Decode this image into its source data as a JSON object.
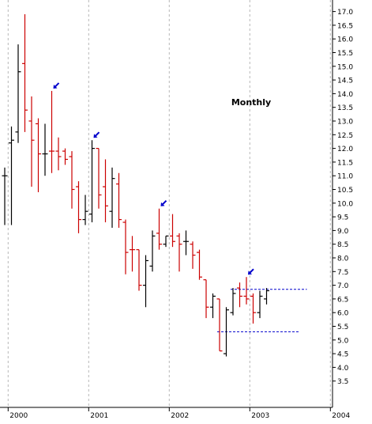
{
  "chart_data": {
    "type": "ohlc",
    "title": "Monthly",
    "ylim": [
      3.0,
      17.5
    ],
    "y_ticks": [
      3.5,
      4.0,
      4.5,
      5.0,
      5.5,
      6.0,
      6.5,
      7.0,
      7.5,
      8.0,
      8.5,
      9.0,
      9.5,
      10.0,
      10.5,
      11.0,
      11.5,
      12.0,
      12.5,
      13.0,
      13.5,
      14.0,
      14.5,
      15.0,
      15.5,
      16.0,
      16.5,
      17.0
    ],
    "y_tick_labels": [
      "3.5",
      "4.0",
      "4.5",
      "5.0",
      "5.5",
      "6.0",
      "6.5",
      "7.0",
      "7.5",
      "8.0",
      "8.5",
      "9.0",
      "9.5",
      "10.0",
      "10.5",
      "11.0",
      "11.5",
      "12.0",
      "12.5",
      "13.0",
      "13.5",
      "14.0",
      "14.5",
      "15.0",
      "15.5",
      "16.0",
      "16.5",
      "17.0"
    ],
    "year_markers": [
      {
        "label": "2000",
        "month_index": 1
      },
      {
        "label": "2001",
        "month_index": 13
      },
      {
        "label": "2002",
        "month_index": 25
      },
      {
        "label": "2003",
        "month_index": 37
      },
      {
        "label": "2004",
        "month_index": 49
      }
    ],
    "bars": [
      {
        "m": 0,
        "open": 11.0,
        "high": 11.3,
        "low": 9.2,
        "close": 11.0,
        "color": "black"
      },
      {
        "m": 1,
        "open": 12.2,
        "high": 12.8,
        "low": 9.2,
        "close": 12.3,
        "color": "black"
      },
      {
        "m": 2,
        "open": 12.6,
        "high": 15.8,
        "low": 12.2,
        "close": 14.8,
        "color": "black"
      },
      {
        "m": 3,
        "open": 15.1,
        "high": 16.9,
        "low": 12.6,
        "close": 13.4,
        "color": "red"
      },
      {
        "m": 4,
        "open": 13.0,
        "high": 13.9,
        "low": 10.6,
        "close": 12.3,
        "color": "red"
      },
      {
        "m": 5,
        "open": 12.9,
        "high": 13.1,
        "low": 10.4,
        "close": 11.8,
        "color": "red"
      },
      {
        "m": 6,
        "open": 11.8,
        "high": 12.9,
        "low": 11.0,
        "close": 11.8,
        "color": "black"
      },
      {
        "m": 7,
        "open": 11.9,
        "high": 14.1,
        "low": 11.1,
        "close": 11.9,
        "color": "red"
      },
      {
        "m": 8,
        "open": 11.9,
        "high": 12.4,
        "low": 11.2,
        "close": 11.7,
        "color": "red"
      },
      {
        "m": 9,
        "open": 11.9,
        "high": 12.0,
        "low": 11.4,
        "close": 11.6,
        "color": "red"
      },
      {
        "m": 10,
        "open": 11.7,
        "high": 11.9,
        "low": 9.8,
        "close": 10.5,
        "color": "red"
      },
      {
        "m": 11,
        "open": 10.6,
        "high": 10.8,
        "low": 8.9,
        "close": 9.4,
        "color": "red"
      },
      {
        "m": 12,
        "open": 9.4,
        "high": 10.3,
        "low": 9.2,
        "close": 9.7,
        "color": "black"
      },
      {
        "m": 13,
        "open": 9.6,
        "high": 12.3,
        "low": 9.3,
        "close": 12.0,
        "color": "black"
      },
      {
        "m": 14,
        "open": 12.0,
        "high": 12.0,
        "low": 9.8,
        "close": 10.3,
        "color": "red"
      },
      {
        "m": 15,
        "open": 10.6,
        "high": 11.6,
        "low": 9.3,
        "close": 9.9,
        "color": "red"
      },
      {
        "m": 16,
        "open": 9.7,
        "high": 11.3,
        "low": 9.1,
        "close": 10.9,
        "color": "black"
      },
      {
        "m": 17,
        "open": 10.7,
        "high": 11.1,
        "low": 9.1,
        "close": 9.4,
        "color": "red"
      },
      {
        "m": 18,
        "open": 9.3,
        "high": 9.4,
        "low": 7.4,
        "close": 8.2,
        "color": "red"
      },
      {
        "m": 19,
        "open": 8.3,
        "high": 8.8,
        "low": 7.5,
        "close": 8.3,
        "color": "red"
      },
      {
        "m": 20,
        "open": 8.3,
        "high": 8.3,
        "low": 6.8,
        "close": 7.0,
        "color": "red"
      },
      {
        "m": 21,
        "open": 7.0,
        "high": 8.1,
        "low": 6.2,
        "close": 7.9,
        "color": "black"
      },
      {
        "m": 22,
        "open": 7.7,
        "high": 9.0,
        "low": 7.5,
        "close": 8.8,
        "color": "black"
      },
      {
        "m": 23,
        "open": 8.9,
        "high": 9.8,
        "low": 8.3,
        "close": 8.5,
        "color": "red"
      },
      {
        "m": 24,
        "open": 8.5,
        "high": 8.8,
        "low": 8.4,
        "close": 8.8,
        "color": "black"
      },
      {
        "m": 25,
        "open": 8.8,
        "high": 9.6,
        "low": 8.4,
        "close": 8.6,
        "color": "red"
      },
      {
        "m": 26,
        "open": 8.8,
        "high": 8.9,
        "low": 7.5,
        "close": 8.5,
        "color": "red"
      },
      {
        "m": 27,
        "open": 8.6,
        "high": 9.0,
        "low": 8.1,
        "close": 8.6,
        "color": "black"
      },
      {
        "m": 28,
        "open": 8.5,
        "high": 8.6,
        "low": 7.6,
        "close": 8.1,
        "color": "red"
      },
      {
        "m": 29,
        "open": 8.2,
        "high": 8.3,
        "low": 7.2,
        "close": 7.3,
        "color": "red"
      },
      {
        "m": 30,
        "open": 7.2,
        "high": 7.2,
        "low": 5.8,
        "close": 6.2,
        "color": "red"
      },
      {
        "m": 31,
        "open": 6.2,
        "high": 6.7,
        "low": 5.8,
        "close": 6.6,
        "color": "black"
      },
      {
        "m": 32,
        "open": 6.5,
        "high": 6.5,
        "low": 4.6,
        "close": 4.6,
        "color": "red"
      },
      {
        "m": 33,
        "open": 4.5,
        "high": 6.2,
        "low": 4.4,
        "close": 6.1,
        "color": "black"
      },
      {
        "m": 34,
        "open": 6.0,
        "high": 6.9,
        "low": 5.9,
        "close": 6.7,
        "color": "black"
      },
      {
        "m": 35,
        "open": 6.9,
        "high": 7.1,
        "low": 6.2,
        "close": 6.6,
        "color": "red"
      },
      {
        "m": 36,
        "open": 6.6,
        "high": 7.3,
        "low": 6.3,
        "close": 6.5,
        "color": "red"
      },
      {
        "m": 37,
        "open": 6.6,
        "high": 6.7,
        "low": 5.6,
        "close": 6.0,
        "color": "red"
      },
      {
        "m": 38,
        "open": 6.0,
        "high": 6.8,
        "low": 5.8,
        "close": 6.6,
        "color": "black"
      },
      {
        "m": 39,
        "open": 6.5,
        "high": 6.9,
        "low": 6.3,
        "close": 6.8,
        "color": "black"
      }
    ],
    "arrows": [
      {
        "m": 7,
        "price": 14.1
      },
      {
        "m": 13,
        "price": 12.3
      },
      {
        "m": 23,
        "price": 9.8
      },
      {
        "m": 36,
        "price": 7.3
      }
    ],
    "dashed_lines": [
      {
        "from_m": 34,
        "to_m": 45,
        "price": 6.85
      },
      {
        "from_m": 32,
        "to_m": 44,
        "price": 5.3
      }
    ],
    "colors": {
      "up": "#000000",
      "down": "#cc0000",
      "arrow": "#0000cc",
      "dashed": "#0000cc",
      "grid": "#b8b8b8",
      "axis": "#000000"
    }
  }
}
